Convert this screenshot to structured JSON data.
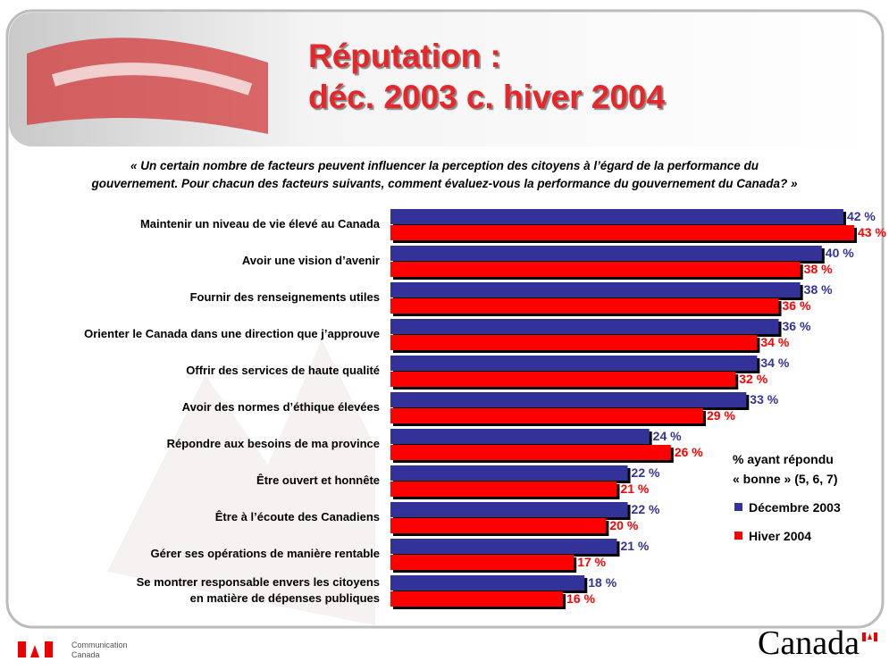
{
  "chart_data": {
    "type": "bar",
    "orientation": "horizontal",
    "title": "Réputation :\ndéc. 2003 c. hiver 2004",
    "subtitle": "« Un certain nombre de facteurs peuvent influencer la perception des citoyens à l’égard de la performance du\ngouvernement. Pour chacun des facteurs suivants, comment évaluez-vous la performance du gouvernement du Canada? »",
    "categories": [
      "Maintenir un niveau de vie élevé au Canada",
      "Avoir une vision d’avenir",
      "Fournir des renseignements utiles",
      "Orienter le Canada dans une direction que j’approuve",
      "Offrir des services de haute qualité",
      "Avoir des normes d’éthique élevées",
      "Répondre aux besoins de ma province",
      "Être ouvert et honnête",
      "Être à l’écoute des Canadiens",
      "Gérer ses opérations de manière rentable",
      "Se montrer responsable envers les citoyens\nen matière de dépenses publiques"
    ],
    "legend_title": "% ayant répondu\n« bonne » (5, 6, 7)",
    "series": [
      {
        "name": "Décembre 2003",
        "color": "#333399",
        "values": [
          42,
          40,
          38,
          36,
          34,
          33,
          24,
          22,
          22,
          21,
          18
        ],
        "value_labels": [
          "42 %",
          "40 %",
          "38 %",
          "36 %",
          "34 %",
          "33 %",
          "24 %",
          "22 %",
          "22 %",
          "21 %",
          "18 %"
        ]
      },
      {
        "name": "Hiver 2004",
        "color": "#ff0000",
        "values": [
          43,
          38,
          36,
          34,
          32,
          29,
          26,
          21,
          20,
          17,
          16
        ],
        "value_labels": [
          "43 %",
          "38 %",
          "36 %",
          "34 %",
          "32 %",
          "29 %",
          "26 %",
          "21 %",
          "20 %",
          "17 %",
          "16 %"
        ]
      }
    ]
  },
  "footer": {
    "department": "Communication\nCanada",
    "wordmark": "Canada"
  }
}
